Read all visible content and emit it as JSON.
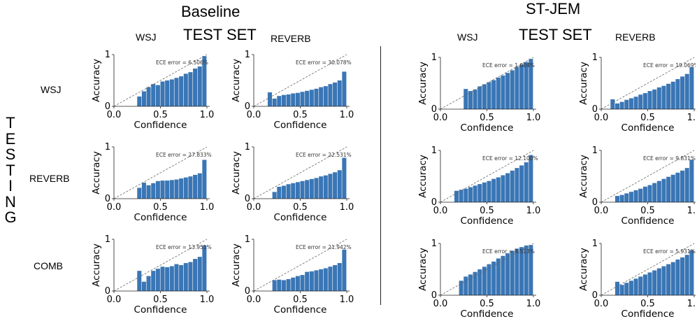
{
  "headers": {
    "baseline_title": "Baseline",
    "stjem_title": "ST-JEM",
    "baseline_test_set": "TEST SET",
    "stjem_test_set": "TEST SET",
    "baseline_col_wsj": "WSJ",
    "baseline_col_reverb": "REVERB",
    "stjem_col_wsj": "WSJ",
    "stjem_col_reverb": "REVERB",
    "row_wsj": "WSJ",
    "row_reverb": "REVERB",
    "row_comb": "COMB",
    "testing_letters": [
      "T",
      "E",
      "S",
      "T",
      "I",
      "N",
      "G"
    ]
  },
  "chart_data": [
    {
      "id": "baseline-wsj-wsj",
      "type": "bar",
      "xlabel": "Confidence",
      "ylabel": "Accuracy",
      "xlim": [
        0,
        1
      ],
      "ylim": [
        0,
        1
      ],
      "xticks": [
        "0.0",
        "0.5",
        "1.0"
      ],
      "yticks": [
        "0",
        "1"
      ],
      "annotation": "ECE error = 6.506%",
      "bin_width": 0.05,
      "x": [
        0.275,
        0.325,
        0.375,
        0.425,
        0.475,
        0.525,
        0.575,
        0.625,
        0.675,
        0.725,
        0.775,
        0.825,
        0.875,
        0.925,
        0.975
      ],
      "values": [
        0.19,
        0.29,
        0.37,
        0.43,
        0.41,
        0.48,
        0.5,
        0.52,
        0.55,
        0.58,
        0.63,
        0.66,
        0.73,
        0.77,
        0.97
      ]
    },
    {
      "id": "baseline-wsj-reverb",
      "type": "bar",
      "xlabel": "Confidence",
      "ylabel": "Accuracy",
      "xlim": [
        0,
        1
      ],
      "ylim": [
        0,
        1
      ],
      "xticks": [
        "0.0",
        "0.5",
        "1.0"
      ],
      "yticks": [
        "0",
        "1"
      ],
      "annotation": "ECE error = 30.078%",
      "bin_width": 0.05,
      "x": [
        0.175,
        0.225,
        0.275,
        0.325,
        0.375,
        0.425,
        0.475,
        0.525,
        0.575,
        0.625,
        0.675,
        0.725,
        0.775,
        0.825,
        0.875,
        0.925,
        0.975
      ],
      "values": [
        0.27,
        0.15,
        0.2,
        0.22,
        0.23,
        0.25,
        0.26,
        0.28,
        0.3,
        0.32,
        0.34,
        0.37,
        0.39,
        0.43,
        0.46,
        0.5,
        0.67
      ]
    },
    {
      "id": "stjem-wsj-wsj",
      "type": "bar",
      "xlabel": "Confidence",
      "ylabel": "Accuracy",
      "xlim": [
        0,
        1
      ],
      "ylim": [
        0,
        1
      ],
      "xticks": [
        "0.0",
        "0.5",
        "1.0"
      ],
      "yticks": [
        "0",
        "1"
      ],
      "annotation": "ECE error = 1.004%",
      "bin_width": 0.05,
      "x": [
        0.275,
        0.325,
        0.375,
        0.425,
        0.475,
        0.525,
        0.575,
        0.625,
        0.675,
        0.725,
        0.775,
        0.825,
        0.875,
        0.925,
        0.975
      ],
      "values": [
        0.39,
        0.35,
        0.38,
        0.44,
        0.48,
        0.52,
        0.56,
        0.61,
        0.65,
        0.7,
        0.75,
        0.81,
        0.86,
        0.91,
        0.97
      ]
    },
    {
      "id": "stjem-wsj-reverb",
      "type": "bar",
      "xlabel": "Confidence",
      "ylabel": "Accuracy",
      "xlim": [
        0,
        1
      ],
      "ylim": [
        0,
        1
      ],
      "xticks": [
        "0.0",
        "0.5",
        "1.0"
      ],
      "yticks": [
        "0",
        "1"
      ],
      "annotation": "ECE error = 19.069%",
      "bin_width": 0.05,
      "x": [
        0.125,
        0.175,
        0.225,
        0.275,
        0.325,
        0.375,
        0.425,
        0.475,
        0.525,
        0.575,
        0.625,
        0.675,
        0.725,
        0.775,
        0.825,
        0.875,
        0.925,
        0.975
      ],
      "values": [
        0.19,
        0.11,
        0.14,
        0.18,
        0.21,
        0.24,
        0.28,
        0.31,
        0.35,
        0.38,
        0.42,
        0.45,
        0.49,
        0.53,
        0.58,
        0.63,
        0.68,
        0.81
      ]
    },
    {
      "id": "baseline-reverb-wsj",
      "type": "bar",
      "xlabel": "Confidence",
      "ylabel": "Accuracy",
      "xlim": [
        0,
        1
      ],
      "ylim": [
        0,
        1
      ],
      "xticks": [
        "0.0",
        "0.5",
        "1.0"
      ],
      "yticks": [
        "0",
        "1"
      ],
      "annotation": "ECE error = 27.833%",
      "bin_width": 0.05,
      "x": [
        0.275,
        0.325,
        0.375,
        0.425,
        0.475,
        0.525,
        0.575,
        0.625,
        0.675,
        0.725,
        0.775,
        0.825,
        0.875,
        0.925,
        0.975
      ],
      "values": [
        0.21,
        0.31,
        0.26,
        0.3,
        0.34,
        0.35,
        0.35,
        0.36,
        0.37,
        0.39,
        0.41,
        0.43,
        0.46,
        0.49,
        0.75
      ]
    },
    {
      "id": "baseline-reverb-reverb",
      "type": "bar",
      "xlabel": "Confidence",
      "ylabel": "Accuracy",
      "xlim": [
        0,
        1
      ],
      "ylim": [
        0,
        1
      ],
      "xticks": [
        "0.0",
        "0.5",
        "1.0"
      ],
      "yticks": [
        "0",
        "1"
      ],
      "annotation": "ECE error = 22.531%",
      "bin_width": 0.05,
      "x": [
        0.225,
        0.275,
        0.325,
        0.375,
        0.425,
        0.475,
        0.525,
        0.575,
        0.625,
        0.675,
        0.725,
        0.775,
        0.825,
        0.875,
        0.925,
        0.975
      ],
      "values": [
        0.13,
        0.23,
        0.25,
        0.28,
        0.3,
        0.32,
        0.34,
        0.36,
        0.38,
        0.4,
        0.43,
        0.45,
        0.48,
        0.51,
        0.55,
        0.79
      ]
    },
    {
      "id": "stjem-reverb-wsj",
      "type": "bar",
      "xlabel": "Confidence",
      "ylabel": "Accuracy",
      "xlim": [
        0,
        1
      ],
      "ylim": [
        0,
        1
      ],
      "xticks": [
        "0.0",
        "0.5",
        "1.0"
      ],
      "yticks": [
        "0",
        "1"
      ],
      "annotation": "ECE error = 12.100%",
      "bin_width": 0.05,
      "x": [
        0.175,
        0.225,
        0.275,
        0.325,
        0.375,
        0.425,
        0.475,
        0.525,
        0.575,
        0.625,
        0.675,
        0.725,
        0.775,
        0.825,
        0.875,
        0.925,
        0.975
      ],
      "values": [
        0.22,
        0.24,
        0.26,
        0.29,
        0.32,
        0.35,
        0.38,
        0.41,
        0.45,
        0.48,
        0.52,
        0.56,
        0.61,
        0.66,
        0.71,
        0.77,
        0.91
      ]
    },
    {
      "id": "stjem-reverb-reverb",
      "type": "bar",
      "xlabel": "Confidence",
      "ylabel": "Accuracy",
      "xlim": [
        0,
        1
      ],
      "ylim": [
        0,
        1
      ],
      "xticks": [
        "0.0",
        "0.5",
        "1.0"
      ],
      "yticks": [
        "0",
        "1"
      ],
      "annotation": "ECE error = 9.831%",
      "bin_width": 0.05,
      "x": [
        0.175,
        0.225,
        0.275,
        0.325,
        0.375,
        0.425,
        0.475,
        0.525,
        0.575,
        0.625,
        0.675,
        0.725,
        0.775,
        0.825,
        0.875,
        0.925,
        0.975
      ],
      "values": [
        0.12,
        0.14,
        0.17,
        0.2,
        0.23,
        0.26,
        0.3,
        0.33,
        0.37,
        0.41,
        0.45,
        0.49,
        0.53,
        0.57,
        0.61,
        0.66,
        0.82
      ]
    },
    {
      "id": "baseline-comb-wsj",
      "type": "bar",
      "xlabel": "Confidence",
      "ylabel": "Accuracy",
      "xlim": [
        0,
        1
      ],
      "ylim": [
        0,
        1
      ],
      "xticks": [
        "0.0",
        "0.5",
        "1.0"
      ],
      "yticks": [
        "0",
        "1"
      ],
      "annotation": "ECE error = 13.951%",
      "bin_width": 0.05,
      "x": [
        0.275,
        0.325,
        0.375,
        0.425,
        0.475,
        0.525,
        0.575,
        0.625,
        0.675,
        0.725,
        0.775,
        0.825,
        0.875,
        0.925,
        0.975
      ],
      "values": [
        0.39,
        0.18,
        0.29,
        0.39,
        0.43,
        0.47,
        0.46,
        0.48,
        0.52,
        0.5,
        0.54,
        0.56,
        0.62,
        0.66,
        0.88
      ]
    },
    {
      "id": "baseline-comb-reverb",
      "type": "bar",
      "xlabel": "Confidence",
      "ylabel": "Accuracy",
      "xlim": [
        0,
        1
      ],
      "ylim": [
        0,
        1
      ],
      "xticks": [
        "0.0",
        "0.5",
        "1.0"
      ],
      "yticks": [
        "0",
        "1"
      ],
      "annotation": "ECE error = 21.942%",
      "bin_width": 0.05,
      "x": [
        0.225,
        0.275,
        0.325,
        0.375,
        0.425,
        0.475,
        0.525,
        0.575,
        0.625,
        0.675,
        0.725,
        0.775,
        0.825,
        0.875,
        0.925,
        0.975
      ],
      "values": [
        0.21,
        0.22,
        0.21,
        0.23,
        0.26,
        0.29,
        0.31,
        0.37,
        0.38,
        0.4,
        0.42,
        0.44,
        0.47,
        0.5,
        0.54,
        0.8
      ]
    },
    {
      "id": "stjem-comb-wsj",
      "type": "bar",
      "xlabel": "Confidence",
      "ylabel": "Accuracy",
      "xlim": [
        0,
        1
      ],
      "ylim": [
        0,
        1
      ],
      "xticks": [
        "0.0",
        "0.5",
        "1.0"
      ],
      "yticks": [
        "0",
        "1"
      ],
      "annotation": "ECE error = 4.513%",
      "bin_width": 0.05,
      "x": [
        0.225,
        0.275,
        0.325,
        0.375,
        0.425,
        0.475,
        0.525,
        0.575,
        0.625,
        0.675,
        0.725,
        0.775,
        0.825,
        0.875,
        0.925,
        0.975
      ],
      "values": [
        0.28,
        0.36,
        0.4,
        0.45,
        0.5,
        0.55,
        0.6,
        0.65,
        0.71,
        0.76,
        0.81,
        0.86,
        0.9,
        0.93,
        0.96,
        0.97
      ]
    },
    {
      "id": "stjem-comb-reverb",
      "type": "bar",
      "xlabel": "Confidence",
      "ylabel": "Accuracy",
      "xlim": [
        0,
        1
      ],
      "ylim": [
        0,
        1
      ],
      "xticks": [
        "0.0",
        "0.5",
        "1.0"
      ],
      "yticks": [
        "0",
        "1"
      ],
      "annotation": "ECE error = 5.931%",
      "bin_width": 0.05,
      "x": [
        0.175,
        0.225,
        0.275,
        0.325,
        0.375,
        0.425,
        0.475,
        0.525,
        0.575,
        0.625,
        0.675,
        0.725,
        0.775,
        0.825,
        0.875,
        0.925,
        0.975
      ],
      "values": [
        0.26,
        0.2,
        0.24,
        0.28,
        0.32,
        0.36,
        0.4,
        0.44,
        0.48,
        0.52,
        0.56,
        0.6,
        0.64,
        0.69,
        0.73,
        0.78,
        0.87
      ]
    }
  ]
}
